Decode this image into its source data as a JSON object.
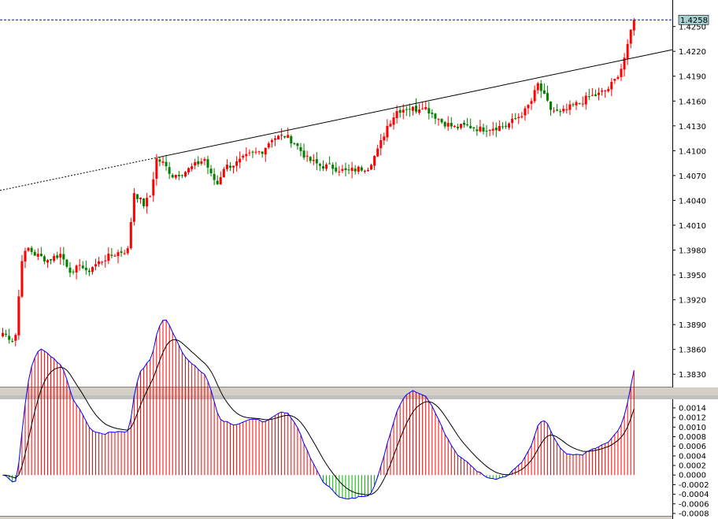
{
  "chart_data": [
    {
      "type": "candlestick",
      "title": "",
      "ylim": [
        1.3815,
        1.4282
      ],
      "yticks": [
        "1.4250",
        "1.4220",
        "1.4190",
        "1.4160",
        "1.4130",
        "1.4100",
        "1.4070",
        "1.4040",
        "1.4010",
        "1.3980",
        "1.3950",
        "1.3920",
        "1.3890",
        "1.3860",
        "1.3830"
      ],
      "current_price_label": "1.4258",
      "current_price": 1.4258,
      "trendline": {
        "start": 1.4052,
        "end": 1.4222,
        "segment_break_fraction": 0.235
      },
      "waypoints": [
        [
          0,
          1.388
        ],
        [
          3,
          1.3872
        ],
        [
          4,
          1.3878
        ],
        [
          6,
          1.397
        ],
        [
          8,
          1.3982
        ],
        [
          10,
          1.3975
        ],
        [
          14,
          1.3968
        ],
        [
          18,
          1.3975
        ],
        [
          22,
          1.395
        ],
        [
          24,
          1.3965
        ],
        [
          26,
          1.3952
        ],
        [
          28,
          1.396
        ],
        [
          32,
          1.397
        ],
        [
          36,
          1.3977
        ],
        [
          39,
          1.398
        ],
        [
          41,
          1.405
        ],
        [
          44,
          1.4035
        ],
        [
          46,
          1.4045
        ],
        [
          48,
          1.409
        ],
        [
          50,
          1.4085
        ],
        [
          53,
          1.407
        ],
        [
          57,
          1.4075
        ],
        [
          61,
          1.4085
        ],
        [
          63,
          1.409
        ],
        [
          65,
          1.407
        ],
        [
          67,
          1.406
        ],
        [
          69,
          1.408
        ],
        [
          73,
          1.4085
        ],
        [
          77,
          1.4095
        ],
        [
          81,
          1.41
        ],
        [
          84,
          1.4115
        ],
        [
          88,
          1.4118
        ],
        [
          91,
          1.411
        ],
        [
          95,
          1.409
        ],
        [
          99,
          1.4082
        ],
        [
          103,
          1.408
        ],
        [
          107,
          1.4075
        ],
        [
          111,
          1.4078
        ],
        [
          114,
          1.408
        ],
        [
          117,
          1.41
        ],
        [
          120,
          1.413
        ],
        [
          123,
          1.4148
        ],
        [
          126,
          1.4152
        ],
        [
          129,
          1.415
        ],
        [
          131,
          1.4155
        ],
        [
          134,
          1.4145
        ],
        [
          137,
          1.4135
        ],
        [
          141,
          1.4128
        ],
        [
          145,
          1.413
        ],
        [
          149,
          1.4126
        ],
        [
          153,
          1.4128
        ],
        [
          157,
          1.413
        ],
        [
          160,
          1.4138
        ],
        [
          163,
          1.4148
        ],
        [
          165,
          1.416
        ],
        [
          167,
          1.418
        ],
        [
          169,
          1.4165
        ],
        [
          171,
          1.415
        ],
        [
          174,
          1.4145
        ],
        [
          177,
          1.4152
        ],
        [
          180,
          1.4158
        ],
        [
          183,
          1.4165
        ],
        [
          186,
          1.4168
        ],
        [
          189,
          1.4175
        ],
        [
          191,
          1.4185
        ],
        [
          193,
          1.42
        ],
        [
          195,
          1.4225
        ],
        [
          196,
          1.4245
        ],
        [
          197,
          1.4258
        ]
      ]
    },
    {
      "type": "macd",
      "title": "",
      "ylim": [
        -0.00085,
        0.00158
      ],
      "yticks": [
        "0.0014",
        "0.0012",
        "0.0010",
        "0.0008",
        "0.0006",
        "0.0004",
        "0.0002",
        "0.0000",
        "-0.0002",
        "-0.0004",
        "-0.0006",
        "-0.0008"
      ],
      "series": [
        {
          "name": "",
          "kind": "histogram",
          "color": "#ff0000",
          "negative_color": "#00b000"
        },
        {
          "name": "",
          "kind": "line",
          "color": "#0000ff"
        },
        {
          "name": "",
          "kind": "line",
          "color": "#000000"
        }
      ]
    }
  ],
  "colors": {
    "background": "#ffffff",
    "frame": "#d4d0c8",
    "bull_candle": "#ff0000",
    "bear_candle": "#008000",
    "current_price_line": "#0000ff",
    "price_label_bg": "#a7d1d1"
  }
}
